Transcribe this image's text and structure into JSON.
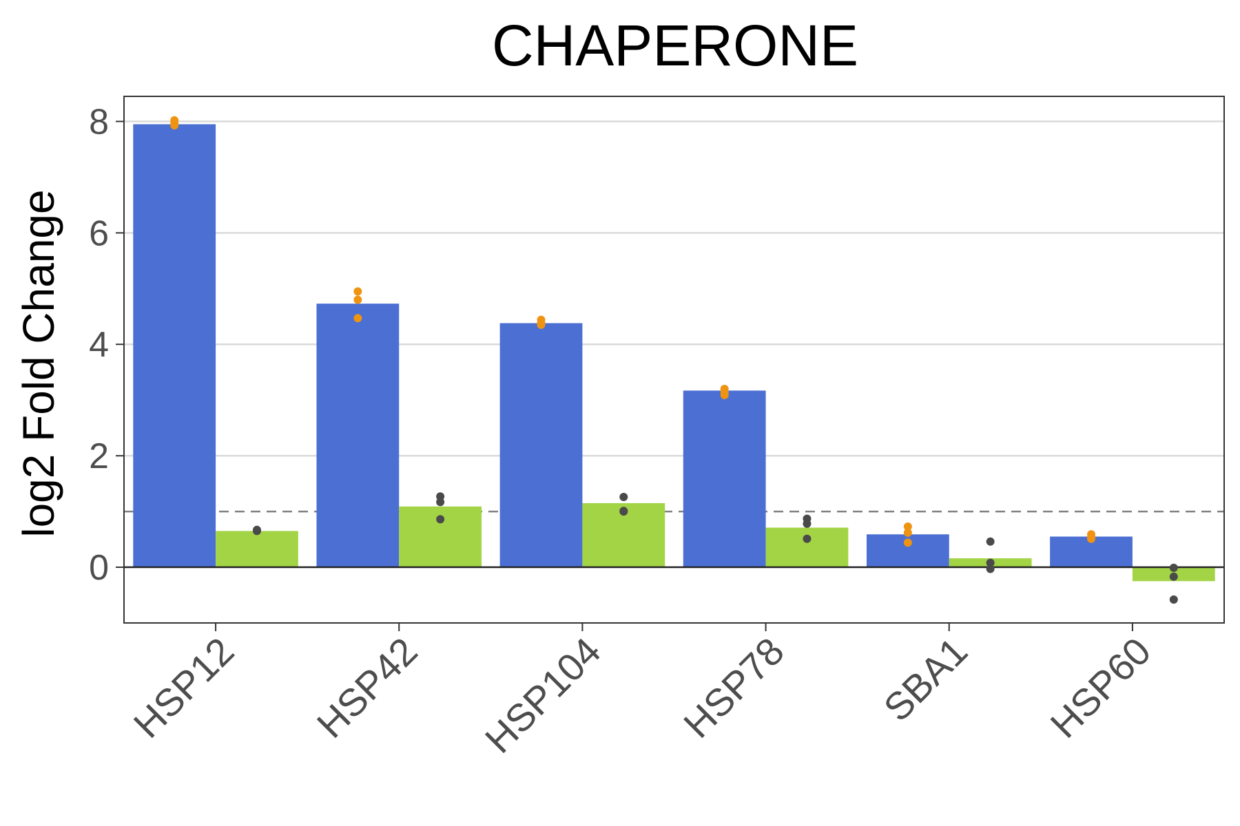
{
  "chart_data": {
    "type": "bar",
    "title": "CHAPERONE",
    "xlabel": "",
    "ylabel": "log2 Fold Change",
    "categories": [
      "HSP12",
      "HSP42",
      "HSP104",
      "HSP78",
      "SBA1",
      "HSP60"
    ],
    "ylim": [
      -1.0,
      8.45
    ],
    "yticks": [
      0,
      2,
      4,
      6,
      8
    ],
    "grid": true,
    "legend": "none",
    "reference_line": 1,
    "series": [
      {
        "color": "#4b6fd3",
        "point_color": "#ef9412",
        "values": [
          7.95,
          4.73,
          4.38,
          3.17,
          0.59,
          0.55
        ],
        "points": [
          [
            8.02,
            7.96,
            7.93
          ],
          [
            4.95,
            4.8,
            4.47
          ],
          [
            4.44,
            4.38,
            4.35
          ],
          [
            3.2,
            3.14,
            3.09
          ],
          [
            0.73,
            0.62,
            0.44
          ],
          [
            0.59,
            0.54,
            0.51
          ]
        ]
      },
      {
        "color": "#a3d446",
        "point_color": "#4a4a4a",
        "values": [
          0.65,
          1.09,
          1.15,
          0.71,
          0.16,
          -0.25
        ],
        "points": [
          [
            0.65,
            0.67,
            0.66
          ],
          [
            1.27,
            1.17,
            0.86
          ],
          [
            1.26,
            1.01,
            1.0
          ],
          [
            0.87,
            0.78,
            0.51
          ],
          [
            0.46,
            0.08,
            -0.03
          ],
          [
            -0.01,
            -0.17,
            -0.58
          ]
        ]
      }
    ]
  }
}
